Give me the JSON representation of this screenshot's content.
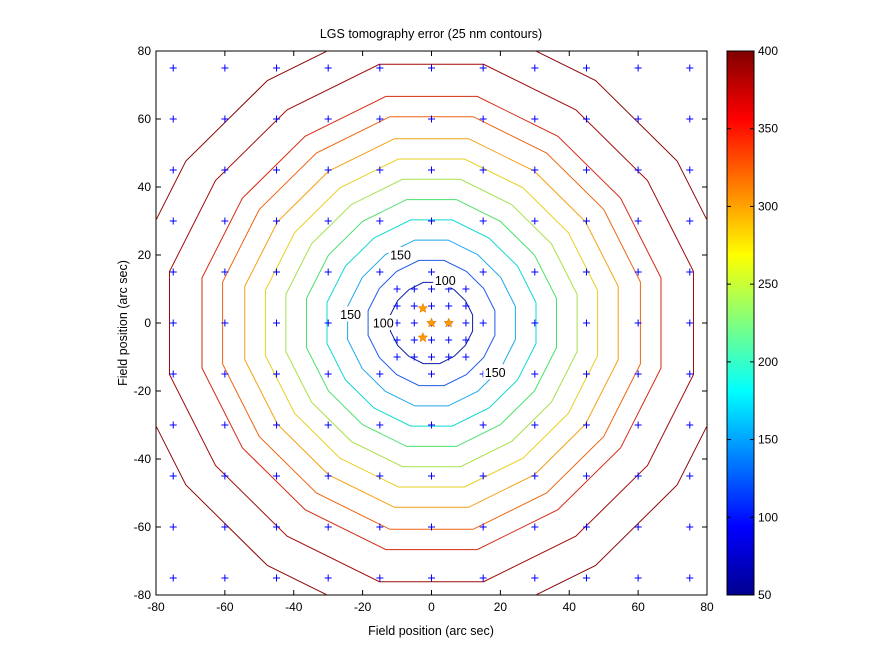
{
  "chart_data": {
    "type": "contour",
    "title": "LGS tomography error (25 nm contours)",
    "xlabel": "Field position (arc sec)",
    "ylabel": "Field position (arc sec)",
    "xlim": [
      -80,
      80
    ],
    "ylim": [
      -80,
      80
    ],
    "xticks": [
      "-80",
      "-60",
      "-40",
      "-20",
      "0",
      "20",
      "40",
      "60",
      "80"
    ],
    "yticks": [
      "80",
      "60",
      "40",
      "20",
      "0",
      "-20",
      "-40",
      "-60",
      "-80"
    ],
    "colorbar": {
      "colormap": "jet",
      "range": [
        50,
        400
      ],
      "ticks": [
        "400",
        "350",
        "300",
        "250",
        "200",
        "150",
        "100",
        "50"
      ]
    },
    "contour_levels": [
      {
        "level": 100,
        "radius": 12,
        "color": "#0a1ea0"
      },
      {
        "level": 125,
        "radius": 18.5,
        "color": "#1e5ae8"
      },
      {
        "level": 150,
        "radius": 24.5,
        "color": "#1ea8e8"
      },
      {
        "level": 175,
        "radius": 30.5,
        "color": "#10d8d0"
      },
      {
        "level": 200,
        "radius": 36.5,
        "color": "#4be06a"
      },
      {
        "level": 225,
        "radius": 42.5,
        "color": "#a8e04a"
      },
      {
        "level": 250,
        "radius": 48.5,
        "color": "#e8d020"
      },
      {
        "level": 275,
        "radius": 54.5,
        "color": "#f3a214"
      },
      {
        "level": 300,
        "radius": 61,
        "color": "#ec6512"
      },
      {
        "level": 325,
        "radius": 67,
        "color": "#d62a12"
      },
      {
        "level": 350,
        "radius": 76.5,
        "color": "#a00a0a"
      },
      {
        "level": 375,
        "radius": 87,
        "color": "#8a0808"
      }
    ],
    "contour_labels": [
      {
        "text": "150",
        "x": -9,
        "y": 20
      },
      {
        "text": "100",
        "x": 4,
        "y": 12.5
      },
      {
        "text": "150",
        "x": -23.5,
        "y": 2.5
      },
      {
        "text": "100",
        "x": -14,
        "y": 0
      },
      {
        "text": "150",
        "x": 18.5,
        "y": -14.5
      }
    ],
    "grid_points": {
      "marker": "+",
      "color": "#0000ff",
      "coarse": [
        -75,
        -60,
        -45,
        -30,
        -15,
        0,
        15,
        30,
        45,
        60,
        75
      ],
      "fine": [
        -10,
        -5,
        0,
        5,
        10
      ]
    },
    "guide_stars": {
      "marker": "*",
      "color": "#ff9900",
      "points": [
        [
          0,
          0
        ],
        [
          5,
          0
        ],
        [
          -2.5,
          4.3
        ],
        [
          -2.5,
          -4.3
        ]
      ]
    }
  }
}
